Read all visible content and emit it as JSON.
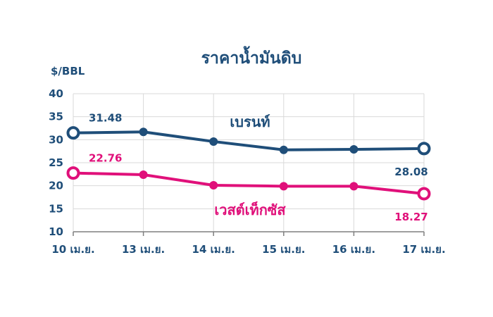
{
  "chart_data": {
    "type": "line",
    "title": "ราคาน้ำมันดิบ",
    "ylabel": "$/BBL",
    "xlabel": "",
    "categories": [
      "10 เม.ย.",
      "13 เม.ย.",
      "14 เม.ย.",
      "15 เม.ย.",
      "16 เม.ย.",
      "17 เม.ย."
    ],
    "ylim": [
      10,
      40
    ],
    "yticks": [
      10,
      15,
      20,
      25,
      30,
      35,
      40
    ],
    "grid": true,
    "series": [
      {
        "name": "เบรนท์",
        "color": "#1f4e79",
        "values": [
          31.48,
          31.7,
          29.6,
          27.8,
          27.9,
          28.08
        ],
        "labels": [
          {
            "index": 0,
            "text": "31.48"
          },
          {
            "index": 5,
            "text": "28.08"
          }
        ]
      },
      {
        "name": "เวสต์เท็กซัส",
        "color": "#e0107a",
        "values": [
          22.76,
          22.4,
          20.1,
          19.9,
          19.9,
          18.27
        ],
        "labels": [
          {
            "index": 0,
            "text": "22.76"
          },
          {
            "index": 5,
            "text": "18.27"
          }
        ]
      }
    ]
  }
}
